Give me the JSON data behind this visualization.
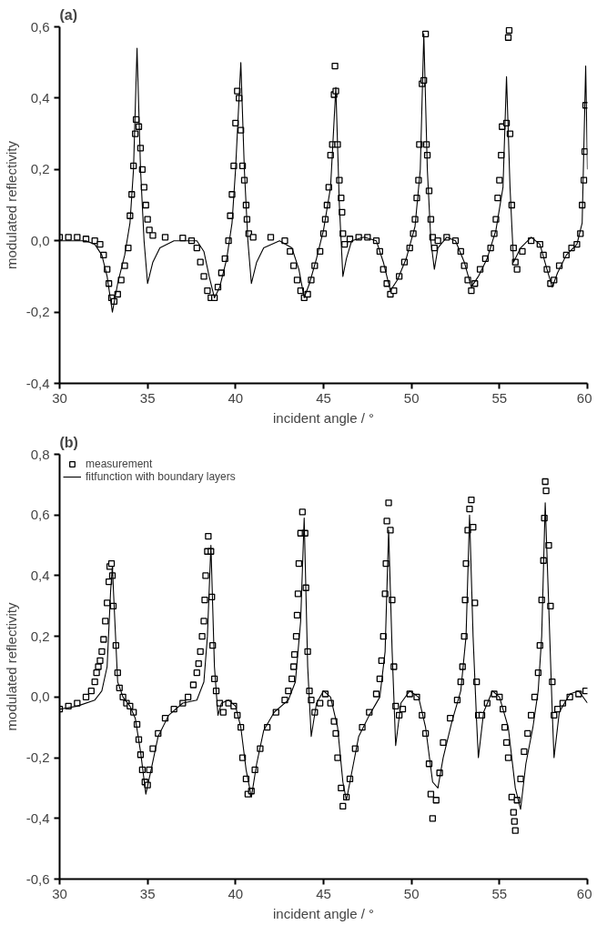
{
  "chart_data": [
    {
      "type": "scatter",
      "title": "(a)",
      "xlabel": "incident angle / °",
      "ylabel": "modulated reflectivity",
      "xlim": [
        30,
        60
      ],
      "ylim": [
        -0.4,
        0.6
      ],
      "xticks": [
        30,
        35,
        40,
        45,
        50,
        55,
        60
      ],
      "yticks": [
        {
          "value": -0.4,
          "label": "-0,4"
        },
        {
          "value": -0.2,
          "label": "-0,2"
        },
        {
          "value": 0,
          "label": "0,0"
        },
        {
          "value": 0.2,
          "label": "0,2"
        },
        {
          "value": 0.4,
          "label": "0,4"
        },
        {
          "value": 0.6,
          "label": "0,6"
        }
      ],
      "grid": false,
      "legend": false,
      "series": [
        {
          "marker": "square",
          "color": "#000000",
          "x": [
            30,
            30.5,
            31,
            31.5,
            32,
            32.3,
            32.5,
            32.7,
            32.8,
            32.95,
            33.1,
            33.3,
            33.5,
            33.7,
            33.9,
            34.0,
            34.1,
            34.2,
            34.3,
            34.35,
            34.5,
            34.6,
            34.7,
            34.8,
            34.9,
            35.0,
            35.1,
            35.3,
            36,
            37,
            37.5,
            37.8,
            38.0,
            38.2,
            38.4,
            38.6,
            38.8,
            39.0,
            39.2,
            39.4,
            39.6,
            39.7,
            39.8,
            39.9,
            40.0,
            40.1,
            40.2,
            40.3,
            40.4,
            40.5,
            40.6,
            40.65,
            40.75,
            41,
            42,
            42.8,
            43.1,
            43.3,
            43.5,
            43.7,
            43.9,
            44.1,
            44.3,
            44.5,
            44.8,
            45.0,
            45.1,
            45.2,
            45.3,
            45.4,
            45.5,
            45.6,
            45.65,
            45.7,
            45.8,
            45.9,
            46.0,
            46.05,
            46.1,
            46.2,
            46.5,
            47,
            47.5,
            48,
            48.2,
            48.4,
            48.6,
            48.8,
            49.0,
            49.3,
            49.6,
            49.9,
            50.1,
            50.2,
            50.3,
            50.4,
            50.45,
            50.6,
            50.7,
            50.8,
            50.85,
            50.9,
            51.0,
            51.1,
            51.2,
            51.3,
            51.5,
            52.0,
            52.5,
            52.8,
            53.0,
            53.2,
            53.4,
            53.6,
            53.9,
            54.2,
            54.5,
            54.7,
            54.8,
            54.9,
            55.0,
            55.1,
            55.15,
            55.4,
            55.5,
            55.55,
            55.6,
            55.7,
            55.8,
            55.9,
            56.0,
            56.3,
            56.8,
            57.3,
            57.5,
            57.7,
            57.9,
            58.1,
            58.4,
            58.8,
            59.1,
            59.4,
            59.6,
            59.7,
            59.8,
            59.85,
            59.9
          ],
          "values": [
            0.01,
            0.01,
            0.01,
            0.005,
            0.0,
            -0.01,
            -0.04,
            -0.08,
            -0.12,
            -0.16,
            -0.17,
            -0.15,
            -0.11,
            -0.07,
            -0.02,
            0.07,
            0.13,
            0.21,
            0.3,
            0.34,
            0.32,
            0.26,
            0.2,
            0.15,
            0.1,
            0.06,
            0.03,
            0.015,
            0.01,
            0.008,
            0.0,
            -0.02,
            -0.06,
            -0.1,
            -0.14,
            -0.16,
            -0.16,
            -0.13,
            -0.09,
            -0.05,
            0.0,
            0.07,
            0.13,
            0.21,
            0.33,
            0.42,
            0.4,
            0.31,
            0.21,
            0.17,
            0.1,
            0.06,
            0.02,
            0.01,
            0.01,
            0.0,
            -0.03,
            -0.07,
            -0.11,
            -0.14,
            -0.16,
            -0.15,
            -0.11,
            -0.07,
            -0.03,
            0.02,
            0.06,
            0.1,
            0.15,
            0.24,
            0.27,
            0.41,
            0.49,
            0.42,
            0.27,
            0.17,
            0.12,
            0.08,
            0.02,
            -0.01,
            0.005,
            0.01,
            0.01,
            0.0,
            -0.03,
            -0.08,
            -0.12,
            -0.15,
            -0.14,
            -0.1,
            -0.06,
            -0.02,
            0.02,
            0.06,
            0.12,
            0.17,
            0.27,
            0.44,
            0.45,
            0.58,
            0.27,
            0.24,
            0.14,
            0.06,
            0.01,
            -0.02,
            0.0,
            0.01,
            0.0,
            -0.03,
            -0.07,
            -0.11,
            -0.14,
            -0.12,
            -0.08,
            -0.05,
            -0.02,
            0.02,
            0.06,
            0.12,
            0.17,
            0.24,
            0.32,
            0.33,
            0.57,
            0.59,
            0.3,
            0.1,
            -0.02,
            -0.06,
            -0.08,
            -0.03,
            0.0,
            -0.01,
            -0.04,
            -0.08,
            -0.12,
            -0.11,
            -0.07,
            -0.04,
            -0.02,
            -0.01,
            0.02,
            0.1,
            0.17,
            0.25,
            0.38
          ]
        },
        {
          "type": "line",
          "line_style": "solid",
          "color": "#000000",
          "x": [
            30,
            31.5,
            32.0,
            32.4,
            32.7,
            33.0,
            33.3,
            33.7,
            34.0,
            34.2,
            34.4,
            34.6,
            34.8,
            35.0,
            35.3,
            35.7,
            36.5,
            37.8,
            38.2,
            38.5,
            38.8,
            39.1,
            39.5,
            39.8,
            40.0,
            40.3,
            40.5,
            40.7,
            40.9,
            41.2,
            41.6,
            42.5,
            43.2,
            43.6,
            43.9,
            44.2,
            44.6,
            45.0,
            45.4,
            45.7,
            45.9,
            46.1,
            46.3,
            46.6,
            47.3,
            48.0,
            48.4,
            48.8,
            49.2,
            49.7,
            50.2,
            50.5,
            50.7,
            50.9,
            51.1,
            51.3,
            51.5,
            52.0,
            52.5,
            53.0,
            53.4,
            53.8,
            54.3,
            54.8,
            55.2,
            55.4,
            55.6,
            55.8,
            56.2,
            56.8,
            57.3,
            57.7,
            58.0,
            58.3,
            58.8,
            59.4,
            59.7,
            59.9,
            60.0
          ],
          "values": [
            0.0,
            0.0,
            -0.01,
            -0.04,
            -0.1,
            -0.2,
            -0.12,
            -0.04,
            0.05,
            0.2,
            0.54,
            0.2,
            0.0,
            -0.12,
            -0.06,
            -0.02,
            0.0,
            0.0,
            -0.03,
            -0.1,
            -0.16,
            -0.13,
            -0.05,
            0.05,
            0.2,
            0.5,
            0.2,
            0.0,
            -0.12,
            -0.06,
            -0.02,
            0.0,
            -0.02,
            -0.08,
            -0.16,
            -0.12,
            -0.05,
            0.03,
            0.15,
            0.43,
            0.1,
            -0.1,
            -0.05,
            0.0,
            0.01,
            0.0,
            -0.06,
            -0.14,
            -0.11,
            -0.05,
            0.04,
            0.2,
            0.58,
            0.2,
            0.0,
            -0.08,
            -0.02,
            0.01,
            0.0,
            -0.06,
            -0.13,
            -0.1,
            -0.05,
            0.03,
            0.15,
            0.46,
            0.15,
            -0.06,
            -0.02,
            0.01,
            -0.01,
            -0.08,
            -0.13,
            -0.09,
            -0.04,
            -0.01,
            0.05,
            0.49,
            0.2
          ]
        }
      ]
    },
    {
      "type": "scatter",
      "title": "(b)",
      "xlabel": "incident angle / °",
      "ylabel": "modulated reflectivity",
      "xlim": [
        30,
        60
      ],
      "ylim": [
        -0.6,
        0.8
      ],
      "xticks": [
        30,
        35,
        40,
        45,
        50,
        55,
        60
      ],
      "yticks": [
        {
          "value": -0.6,
          "label": "-0,6"
        },
        {
          "value": -0.4,
          "label": "-0,4"
        },
        {
          "value": -0.2,
          "label": "-0,2"
        },
        {
          "value": 0,
          "label": "0,0"
        },
        {
          "value": 0.2,
          "label": "0,2"
        },
        {
          "value": 0.4,
          "label": "0,4"
        },
        {
          "value": 0.6,
          "label": "0,6"
        },
        {
          "value": 0.8,
          "label": "0,8"
        }
      ],
      "grid": false,
      "legend": "top left",
      "series": [
        {
          "marker": "square",
          "name": "measurement",
          "color": "#000000",
          "x": [
            30,
            30.5,
            31,
            31.5,
            31.8,
            32.0,
            32.1,
            32.2,
            32.3,
            32.4,
            32.5,
            32.6,
            32.7,
            32.8,
            32.85,
            32.95,
            33.0,
            33.05,
            33.2,
            33.3,
            33.4,
            33.6,
            33.8,
            34.0,
            34.2,
            34.4,
            34.5,
            34.6,
            34.7,
            34.85,
            35.0,
            35.1,
            35.3,
            35.6,
            36.0,
            36.5,
            37.0,
            37.3,
            37.6,
            37.8,
            37.9,
            38.0,
            38.1,
            38.2,
            38.25,
            38.3,
            38.4,
            38.45,
            38.6,
            38.65,
            38.7,
            38.8,
            38.9,
            39.1,
            39.3,
            39.6,
            39.9,
            40.1,
            40.3,
            40.4,
            40.6,
            40.7,
            40.9,
            41.1,
            41.4,
            41.8,
            42.3,
            42.8,
            43.0,
            43.2,
            43.3,
            43.35,
            43.45,
            43.5,
            43.55,
            43.6,
            43.7,
            43.8,
            43.95,
            44.0,
            44.1,
            44.2,
            44.3,
            44.5,
            44.8,
            45.1,
            45.4,
            45.6,
            45.7,
            45.8,
            46.0,
            46.1,
            46.3,
            46.5,
            46.8,
            47.2,
            47.6,
            48.0,
            48.2,
            48.3,
            48.4,
            48.5,
            48.55,
            48.6,
            48.7,
            48.8,
            48.9,
            49.0,
            49.1,
            49.3,
            49.5,
            49.9,
            50.3,
            50.6,
            50.8,
            51.0,
            51.1,
            51.2,
            51.4,
            51.6,
            51.8,
            52.2,
            52.6,
            52.8,
            52.9,
            53.0,
            53.05,
            53.1,
            53.2,
            53.3,
            53.4,
            53.5,
            53.6,
            53.7,
            53.8,
            54.0,
            54.3,
            54.7,
            55.0,
            55.2,
            55.3,
            55.4,
            55.5,
            55.7,
            55.8,
            55.85,
            55.9,
            56.0,
            56.2,
            56.4,
            56.6,
            56.8,
            57.0,
            57.2,
            57.3,
            57.4,
            57.5,
            57.55,
            57.6,
            57.65,
            57.8,
            57.9,
            58.0,
            58.1,
            58.3,
            58.6,
            59.0,
            59.5,
            59.9
          ],
          "values": [
            -0.04,
            -0.03,
            -0.02,
            0.0,
            0.02,
            0.05,
            0.08,
            0.1,
            0.12,
            0.15,
            0.19,
            0.25,
            0.31,
            0.38,
            0.43,
            0.44,
            0.4,
            0.3,
            0.17,
            0.08,
            0.03,
            0.0,
            -0.02,
            -0.03,
            -0.05,
            -0.09,
            -0.14,
            -0.19,
            -0.24,
            -0.28,
            -0.29,
            -0.24,
            -0.17,
            -0.12,
            -0.07,
            -0.04,
            -0.02,
            0.0,
            0.04,
            0.08,
            0.11,
            0.15,
            0.2,
            0.25,
            0.32,
            0.4,
            0.48,
            0.53,
            0.48,
            0.33,
            0.17,
            0.06,
            0.02,
            -0.02,
            -0.05,
            -0.02,
            -0.03,
            -0.06,
            -0.1,
            -0.2,
            -0.27,
            -0.32,
            -0.31,
            -0.24,
            -0.17,
            -0.1,
            -0.05,
            -0.01,
            0.02,
            0.06,
            0.1,
            0.14,
            0.2,
            0.27,
            0.34,
            0.44,
            0.54,
            0.61,
            0.54,
            0.36,
            0.15,
            0.02,
            -0.01,
            -0.05,
            -0.02,
            0.01,
            -0.02,
            -0.08,
            -0.12,
            -0.2,
            -0.3,
            -0.36,
            -0.33,
            -0.27,
            -0.17,
            -0.1,
            -0.05,
            0.01,
            0.06,
            0.12,
            0.2,
            0.34,
            0.44,
            0.58,
            0.64,
            0.55,
            0.32,
            0.1,
            -0.03,
            -0.06,
            -0.04,
            0.01,
            0.0,
            -0.06,
            -0.12,
            -0.22,
            -0.32,
            -0.4,
            -0.34,
            -0.25,
            -0.15,
            -0.07,
            -0.01,
            0.05,
            0.1,
            0.2,
            0.32,
            0.44,
            0.55,
            0.62,
            0.65,
            0.56,
            0.31,
            0.05,
            -0.06,
            -0.06,
            -0.02,
            0.01,
            0.0,
            -0.04,
            -0.1,
            -0.15,
            -0.2,
            -0.33,
            -0.38,
            -0.41,
            -0.44,
            -0.34,
            -0.27,
            -0.18,
            -0.12,
            -0.06,
            0.0,
            0.08,
            0.17,
            0.32,
            0.45,
            0.59,
            0.71,
            0.68,
            0.5,
            0.3,
            0.05,
            -0.06,
            -0.04,
            -0.02,
            0.0,
            0.01,
            0.02
          ]
        },
        {
          "type": "line",
          "line_style": "solid",
          "name": "fitfunction with boundary layers",
          "color": "#000000",
          "x": [
            30,
            31,
            32,
            32.4,
            32.7,
            32.9,
            33.0,
            33.1,
            33.3,
            33.6,
            34.0,
            34.3,
            34.6,
            34.9,
            35.2,
            35.6,
            36.2,
            37.0,
            37.8,
            38.2,
            38.4,
            38.6,
            38.8,
            39.0,
            39.2,
            39.6,
            40.0,
            40.3,
            40.6,
            40.9,
            41.2,
            41.6,
            42.2,
            43.0,
            43.4,
            43.7,
            43.9,
            44.1,
            44.3,
            44.6,
            45.0,
            45.4,
            45.8,
            46.1,
            46.3,
            46.6,
            47.0,
            47.6,
            48.2,
            48.5,
            48.7,
            48.9,
            49.1,
            49.4,
            49.9,
            50.4,
            50.8,
            51.2,
            51.5,
            51.8,
            52.3,
            52.8,
            53.1,
            53.3,
            53.5,
            53.7,
            53.8,
            54.1,
            54.6,
            55.0,
            55.5,
            55.9,
            56.2,
            56.5,
            56.9,
            57.2,
            57.4,
            57.6,
            57.8,
            58.0,
            58.1,
            58.4,
            59.0,
            59.5,
            60.0
          ],
          "values": [
            -0.04,
            -0.03,
            -0.01,
            0.02,
            0.1,
            0.35,
            0.43,
            0.3,
            0.05,
            0.0,
            -0.03,
            -0.07,
            -0.18,
            -0.32,
            -0.24,
            -0.13,
            -0.06,
            -0.02,
            -0.01,
            0.05,
            0.2,
            0.5,
            0.1,
            -0.06,
            -0.02,
            -0.01,
            -0.03,
            -0.1,
            -0.24,
            -0.33,
            -0.22,
            -0.11,
            -0.05,
            -0.01,
            0.05,
            0.25,
            0.59,
            0.1,
            -0.13,
            -0.02,
            0.02,
            0.0,
            -0.1,
            -0.28,
            -0.34,
            -0.25,
            -0.13,
            -0.06,
            0.0,
            0.15,
            0.55,
            0.15,
            -0.16,
            -0.02,
            0.02,
            0.0,
            -0.1,
            -0.28,
            -0.3,
            -0.2,
            -0.08,
            0.02,
            0.2,
            0.6,
            0.2,
            -0.08,
            -0.2,
            -0.05,
            0.02,
            0.0,
            -0.1,
            -0.3,
            -0.37,
            -0.22,
            -0.1,
            0.02,
            0.2,
            0.64,
            0.3,
            -0.05,
            -0.2,
            -0.05,
            0.01,
            0.02,
            -0.02
          ]
        }
      ]
    }
  ]
}
